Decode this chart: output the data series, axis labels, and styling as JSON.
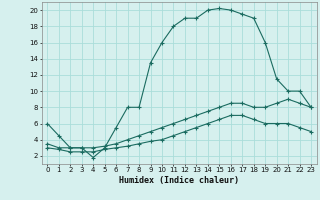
{
  "xlabel": "Humidex (Indice chaleur)",
  "ylabel": "",
  "bg_color": "#d6f0ee",
  "grid_color": "#aaddda",
  "line_color": "#1a6b60",
  "xlim": [
    -0.5,
    23.5
  ],
  "ylim": [
    1,
    21
  ],
  "xticks": [
    0,
    1,
    2,
    3,
    4,
    5,
    6,
    7,
    8,
    9,
    10,
    11,
    12,
    13,
    14,
    15,
    16,
    17,
    18,
    19,
    20,
    21,
    22,
    23
  ],
  "yticks": [
    2,
    4,
    6,
    8,
    10,
    12,
    14,
    16,
    18,
    20
  ],
  "series": [
    {
      "x": [
        0,
        1,
        2,
        3,
        4,
        5,
        6,
        7,
        8,
        9,
        10,
        11,
        12,
        13,
        14,
        15,
        16,
        17,
        18,
        19,
        20,
        21,
        22,
        23
      ],
      "y": [
        6,
        4.5,
        3,
        3,
        1.8,
        3,
        5.5,
        8,
        8,
        13.5,
        16,
        18,
        19,
        19,
        20,
        20.2,
        20,
        19.5,
        19,
        16,
        11.5,
        10,
        10,
        8
      ]
    },
    {
      "x": [
        0,
        1,
        2,
        3,
        4,
        5,
        6,
        7,
        8,
        9,
        10,
        11,
        12,
        13,
        14,
        15,
        16,
        17,
        18,
        19,
        20,
        21,
        22,
        23
      ],
      "y": [
        3.5,
        3,
        3,
        3,
        3,
        3.2,
        3.5,
        4,
        4.5,
        5,
        5.5,
        6,
        6.5,
        7,
        7.5,
        8,
        8.5,
        8.5,
        8,
        8,
        8.5,
        9,
        8.5,
        8
      ]
    },
    {
      "x": [
        0,
        1,
        2,
        3,
        4,
        5,
        6,
        7,
        8,
        9,
        10,
        11,
        12,
        13,
        14,
        15,
        16,
        17,
        18,
        19,
        20,
        21,
        22,
        23
      ],
      "y": [
        3,
        2.8,
        2.5,
        2.5,
        2.5,
        2.8,
        3,
        3.2,
        3.5,
        3.8,
        4,
        4.5,
        5,
        5.5,
        6,
        6.5,
        7,
        7,
        6.5,
        6,
        6,
        6,
        5.5,
        5
      ]
    }
  ]
}
